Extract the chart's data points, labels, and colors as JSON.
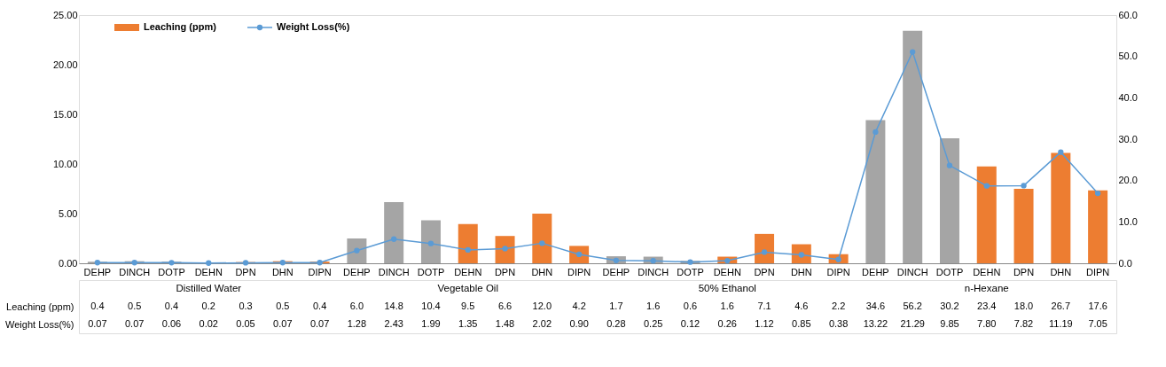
{
  "chart_data": {
    "type": "bar",
    "categories": [
      "DEHP",
      "DINCH",
      "DOTP",
      "DEHN",
      "DPN",
      "DHN",
      "DIPN",
      "DEHP",
      "DINCH",
      "DOTP",
      "DEHN",
      "DPN",
      "DHN",
      "DIPN",
      "DEHP",
      "DINCH",
      "DOTP",
      "DEHN",
      "DPN",
      "DHN",
      "DIPN",
      "DEHP",
      "DINCH",
      "DOTP",
      "DEHN",
      "DPN",
      "DHN",
      "DIPN"
    ],
    "annotations": [
      "Distilled Water",
      "Vegetable Oil",
      "50% Ethanol",
      "n-Hexane"
    ],
    "series": [
      {
        "name": "Leaching (ppm)",
        "axis": "y2",
        "color": "#ed7d31",
        "colors": [
          "#a5a5a5",
          "#a5a5a5",
          "#a5a5a5",
          "#ed7d31",
          "#ed7d31",
          "#ed7d31",
          "#ed7d31",
          "#a5a5a5",
          "#a5a5a5",
          "#a5a5a5",
          "#ed7d31",
          "#ed7d31",
          "#ed7d31",
          "#ed7d31",
          "#a5a5a5",
          "#a5a5a5",
          "#a5a5a5",
          "#ed7d31",
          "#ed7d31",
          "#ed7d31",
          "#ed7d31",
          "#a5a5a5",
          "#a5a5a5",
          "#a5a5a5",
          "#ed7d31",
          "#ed7d31",
          "#ed7d31",
          "#ed7d31"
        ],
        "values": [
          0.4,
          0.5,
          0.4,
          0.2,
          0.3,
          0.5,
          0.4,
          6.0,
          14.8,
          10.4,
          9.5,
          6.6,
          12.0,
          4.2,
          1.7,
          1.6,
          0.6,
          1.6,
          7.1,
          4.6,
          2.2,
          34.6,
          56.2,
          30.2,
          23.4,
          18.0,
          26.7,
          17.6
        ],
        "value_labels": [
          "0.4",
          "0.5",
          "0.4",
          "0.2",
          "0.3",
          "0.5",
          "0.4",
          "6.0",
          "14.8",
          "10.4",
          "9.5",
          "6.6",
          "12.0",
          "4.2",
          "1.7",
          "1.6",
          "0.6",
          "1.6",
          "7.1",
          "4.6",
          "2.2",
          "34.6",
          "56.2",
          "30.2",
          "23.4",
          "18.0",
          "26.7",
          "17.6"
        ]
      },
      {
        "name": "Weight Loss(%)",
        "type": "line",
        "axis": "y",
        "color": "#5b9bd5",
        "values": [
          0.07,
          0.07,
          0.06,
          0.02,
          0.05,
          0.07,
          0.07,
          1.28,
          2.43,
          1.99,
          1.35,
          1.48,
          2.02,
          0.9,
          0.28,
          0.25,
          0.12,
          0.26,
          1.12,
          0.85,
          0.38,
          13.22,
          21.29,
          9.85,
          7.8,
          7.82,
          11.19,
          7.05
        ],
        "value_labels": [
          "0.07",
          "0.07",
          "0.06",
          "0.02",
          "0.05",
          "0.07",
          "0.07",
          "1.28",
          "2.43",
          "1.99",
          "1.35",
          "1.48",
          "2.02",
          "0.90",
          "0.28",
          "0.25",
          "0.12",
          "0.26",
          "1.12",
          "0.85",
          "0.38",
          "13.22",
          "21.29",
          "9.85",
          "7.80",
          "7.82",
          "11.19",
          "7.05"
        ]
      }
    ],
    "ylim": [
      0,
      25
    ],
    "yticks": [
      {
        "value": 0,
        "label": "0.00"
      },
      {
        "value": 5,
        "label": "5.00"
      },
      {
        "value": 10,
        "label": "10.00"
      },
      {
        "value": 15,
        "label": "15.00"
      },
      {
        "value": 20,
        "label": "20.00"
      },
      {
        "value": 25,
        "label": "25.00"
      }
    ],
    "y2lim": [
      0,
      60
    ],
    "y2ticks": [
      {
        "value": 0,
        "label": "0.0"
      },
      {
        "value": 10,
        "label": "10.0"
      },
      {
        "value": 20,
        "label": "20.0"
      },
      {
        "value": 30,
        "label": "30.0"
      },
      {
        "value": 40,
        "label": "40.0"
      },
      {
        "value": 50,
        "label": "50.0"
      },
      {
        "value": 60,
        "label": "60.0"
      }
    ],
    "legend": "top left",
    "marker": "circle",
    "line_style": "solid"
  }
}
